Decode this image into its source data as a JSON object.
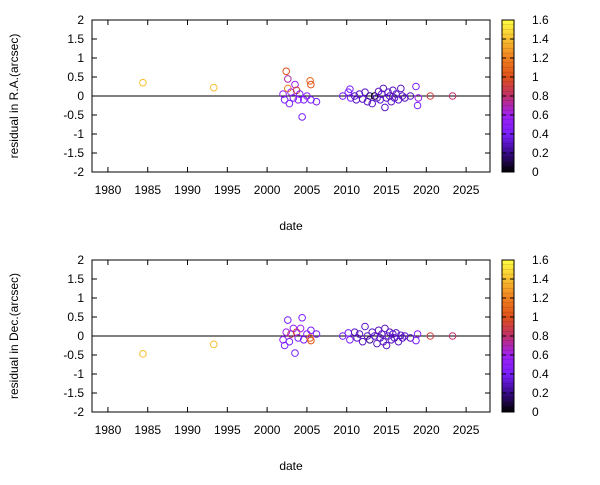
{
  "chart_data": [
    {
      "type": "scatter",
      "xlabel": "date",
      "ylabel": "residual in R.A.(arcsec)",
      "xlim": [
        1978,
        2028
      ],
      "ylim": [
        -2,
        2
      ],
      "xticks": [
        "1980",
        "1985",
        "1990",
        "1995",
        "2000",
        "2005",
        "2010",
        "2015",
        "2020",
        "2025"
      ],
      "yticks": [
        "-2",
        "-1.5",
        "-1",
        "-0.5",
        "0",
        "0.5",
        "1",
        "1.5",
        "2"
      ],
      "colorbar": {
        "range": [
          0,
          1.6
        ],
        "ticks": [
          "0",
          "0.2",
          "0.4",
          "0.6",
          "0.8",
          "1",
          "1.2",
          "1.4",
          "1.6"
        ],
        "stops": [
          "#000000",
          "#3a0a8a",
          "#7b1fff",
          "#a020f0",
          "#c0306a",
          "#e0501a",
          "#f08020",
          "#f8c030",
          "#ffff40"
        ]
      },
      "zero_line": true,
      "points": [
        {
          "x": 1984.4,
          "y": 0.35,
          "c": 1.4
        },
        {
          "x": 1993.3,
          "y": 0.22,
          "c": 1.4
        },
        {
          "x": 2002.0,
          "y": 0.05,
          "c": 0.5
        },
        {
          "x": 2002.2,
          "y": -0.1,
          "c": 0.4
        },
        {
          "x": 2002.4,
          "y": 0.65,
          "c": 1.0
        },
        {
          "x": 2002.6,
          "y": 0.45,
          "c": 0.7
        },
        {
          "x": 2002.6,
          "y": 0.2,
          "c": 1.2
        },
        {
          "x": 2002.8,
          "y": -0.2,
          "c": 0.4
        },
        {
          "x": 2003.0,
          "y": 0.1,
          "c": 0.6
        },
        {
          "x": 2003.3,
          "y": -0.05,
          "c": 0.4
        },
        {
          "x": 2003.5,
          "y": 0.3,
          "c": 0.6
        },
        {
          "x": 2003.7,
          "y": 0.15,
          "c": 0.9
        },
        {
          "x": 2003.9,
          "y": -0.1,
          "c": 0.5
        },
        {
          "x": 2004.1,
          "y": 0.05,
          "c": 0.4
        },
        {
          "x": 2004.4,
          "y": -0.55,
          "c": 0.4
        },
        {
          "x": 2004.6,
          "y": -0.1,
          "c": 0.4
        },
        {
          "x": 2005.0,
          "y": 0.0,
          "c": 0.5
        },
        {
          "x": 2005.4,
          "y": 0.4,
          "c": 1.1
        },
        {
          "x": 2005.5,
          "y": 0.3,
          "c": 1.0
        },
        {
          "x": 2005.5,
          "y": -0.1,
          "c": 0.4
        },
        {
          "x": 2006.2,
          "y": -0.15,
          "c": 0.4
        },
        {
          "x": 2009.5,
          "y": 0.0,
          "c": 0.4
        },
        {
          "x": 2010.2,
          "y": 0.1,
          "c": 0.4
        },
        {
          "x": 2010.4,
          "y": 0.18,
          "c": 0.4
        },
        {
          "x": 2010.5,
          "y": -0.05,
          "c": 0.4
        },
        {
          "x": 2011.0,
          "y": 0.0,
          "c": 0.3
        },
        {
          "x": 2011.2,
          "y": -0.1,
          "c": 0.3
        },
        {
          "x": 2011.6,
          "y": 0.05,
          "c": 0.3
        },
        {
          "x": 2012.0,
          "y": -0.08,
          "c": 0.3
        },
        {
          "x": 2012.3,
          "y": 0.1,
          "c": 0.3
        },
        {
          "x": 2012.6,
          "y": -0.15,
          "c": 0.3
        },
        {
          "x": 2012.9,
          "y": 0.0,
          "c": 0.2
        },
        {
          "x": 2013.2,
          "y": -0.2,
          "c": 0.3
        },
        {
          "x": 2013.5,
          "y": 0.0,
          "c": 0.0
        },
        {
          "x": 2013.8,
          "y": -0.05,
          "c": 0.3
        },
        {
          "x": 2014.0,
          "y": 0.12,
          "c": 0.3
        },
        {
          "x": 2014.2,
          "y": -0.1,
          "c": 0.3
        },
        {
          "x": 2014.4,
          "y": 0.05,
          "c": 0.3
        },
        {
          "x": 2014.6,
          "y": 0.2,
          "c": 0.3
        },
        {
          "x": 2014.8,
          "y": -0.3,
          "c": 0.3
        },
        {
          "x": 2015.0,
          "y": -0.05,
          "c": 0.3
        },
        {
          "x": 2015.2,
          "y": 0.1,
          "c": 0.3
        },
        {
          "x": 2015.4,
          "y": 0.0,
          "c": 0.3
        },
        {
          "x": 2015.6,
          "y": -0.15,
          "c": 0.3
        },
        {
          "x": 2015.8,
          "y": 0.15,
          "c": 0.3
        },
        {
          "x": 2016.0,
          "y": -0.05,
          "c": 0.3
        },
        {
          "x": 2016.2,
          "y": 0.05,
          "c": 0.3
        },
        {
          "x": 2016.5,
          "y": -0.1,
          "c": 0.3
        },
        {
          "x": 2016.8,
          "y": 0.2,
          "c": 0.3
        },
        {
          "x": 2017.0,
          "y": 0.0,
          "c": 0.3
        },
        {
          "x": 2017.3,
          "y": -0.05,
          "c": 0.3
        },
        {
          "x": 2018.0,
          "y": 0.0,
          "c": 0.3
        },
        {
          "x": 2018.7,
          "y": 0.25,
          "c": 0.4
        },
        {
          "x": 2018.9,
          "y": -0.25,
          "c": 0.4
        },
        {
          "x": 2019.0,
          "y": -0.05,
          "c": 0.6
        },
        {
          "x": 2020.5,
          "y": 0.0,
          "c": 0.9
        },
        {
          "x": 2023.3,
          "y": 0.0,
          "c": 0.8
        }
      ]
    },
    {
      "type": "scatter",
      "xlabel": "date",
      "ylabel": "residual in Dec.(arcsec)",
      "xlim": [
        1978,
        2028
      ],
      "ylim": [
        -2,
        2
      ],
      "xticks": [
        "1980",
        "1985",
        "1990",
        "1995",
        "2000",
        "2005",
        "2010",
        "2015",
        "2020",
        "2025"
      ],
      "yticks": [
        "-2",
        "-1.5",
        "-1",
        "-0.5",
        "0",
        "0.5",
        "1",
        "1.5",
        "2"
      ],
      "colorbar": {
        "range": [
          0,
          1.6
        ],
        "ticks": [
          "0",
          "0.2",
          "0.4",
          "0.6",
          "0.8",
          "1",
          "1.2",
          "1.4",
          "1.6"
        ],
        "stops": [
          "#000000",
          "#3a0a8a",
          "#7b1fff",
          "#a020f0",
          "#c0306a",
          "#e0501a",
          "#f08020",
          "#f8c030",
          "#ffff40"
        ]
      },
      "zero_line": true,
      "points": [
        {
          "x": 1984.4,
          "y": -0.47,
          "c": 1.4
        },
        {
          "x": 1993.3,
          "y": -0.22,
          "c": 1.4
        },
        {
          "x": 2002.0,
          "y": -0.1,
          "c": 0.5
        },
        {
          "x": 2002.2,
          "y": -0.25,
          "c": 0.4
        },
        {
          "x": 2002.4,
          "y": 0.1,
          "c": 0.6
        },
        {
          "x": 2002.6,
          "y": 0.42,
          "c": 0.4
        },
        {
          "x": 2002.8,
          "y": -0.15,
          "c": 0.4
        },
        {
          "x": 2003.0,
          "y": 0.05,
          "c": 0.8
        },
        {
          "x": 2003.3,
          "y": 0.2,
          "c": 0.5
        },
        {
          "x": 2003.5,
          "y": -0.45,
          "c": 0.4
        },
        {
          "x": 2003.7,
          "y": 0.1,
          "c": 0.9
        },
        {
          "x": 2003.9,
          "y": -0.05,
          "c": 0.4
        },
        {
          "x": 2004.2,
          "y": 0.2,
          "c": 0.6
        },
        {
          "x": 2004.4,
          "y": 0.48,
          "c": 0.4
        },
        {
          "x": 2004.6,
          "y": -0.1,
          "c": 0.4
        },
        {
          "x": 2005.0,
          "y": 0.05,
          "c": 0.5
        },
        {
          "x": 2005.4,
          "y": -0.05,
          "c": 1.1
        },
        {
          "x": 2005.5,
          "y": -0.12,
          "c": 1.0
        },
        {
          "x": 2005.5,
          "y": 0.15,
          "c": 0.4
        },
        {
          "x": 2006.2,
          "y": 0.05,
          "c": 0.4
        },
        {
          "x": 2009.5,
          "y": 0.0,
          "c": 0.4
        },
        {
          "x": 2010.2,
          "y": 0.08,
          "c": 0.4
        },
        {
          "x": 2010.4,
          "y": -0.1,
          "c": 0.4
        },
        {
          "x": 2011.0,
          "y": 0.1,
          "c": 0.3
        },
        {
          "x": 2011.3,
          "y": -0.05,
          "c": 0.3
        },
        {
          "x": 2011.6,
          "y": 0.05,
          "c": 0.3
        },
        {
          "x": 2012.0,
          "y": -0.15,
          "c": 0.3
        },
        {
          "x": 2012.3,
          "y": 0.25,
          "c": 0.3
        },
        {
          "x": 2012.6,
          "y": 0.0,
          "c": 0.3
        },
        {
          "x": 2012.9,
          "y": -0.1,
          "c": 0.2
        },
        {
          "x": 2013.2,
          "y": 0.1,
          "c": 0.3
        },
        {
          "x": 2013.5,
          "y": 0.0,
          "c": 0.3
        },
        {
          "x": 2013.8,
          "y": -0.2,
          "c": 0.3
        },
        {
          "x": 2014.0,
          "y": 0.15,
          "c": 0.3
        },
        {
          "x": 2014.2,
          "y": -0.05,
          "c": 0.3
        },
        {
          "x": 2014.4,
          "y": 0.05,
          "c": 0.3
        },
        {
          "x": 2014.6,
          "y": -0.15,
          "c": 0.3
        },
        {
          "x": 2014.8,
          "y": 0.2,
          "c": 0.3
        },
        {
          "x": 2015.0,
          "y": -0.25,
          "c": 0.3
        },
        {
          "x": 2015.2,
          "y": 0.0,
          "c": 0.3
        },
        {
          "x": 2015.4,
          "y": 0.1,
          "c": 0.3
        },
        {
          "x": 2015.6,
          "y": -0.1,
          "c": 0.3
        },
        {
          "x": 2015.8,
          "y": 0.05,
          "c": 0.3
        },
        {
          "x": 2016.0,
          "y": -0.05,
          "c": 0.3
        },
        {
          "x": 2016.2,
          "y": 0.08,
          "c": 0.3
        },
        {
          "x": 2016.5,
          "y": -0.15,
          "c": 0.3
        },
        {
          "x": 2016.8,
          "y": 0.02,
          "c": 0.3
        },
        {
          "x": 2017.0,
          "y": -0.05,
          "c": 0.3
        },
        {
          "x": 2017.3,
          "y": 0.0,
          "c": 0.3
        },
        {
          "x": 2018.0,
          "y": -0.05,
          "c": 0.3
        },
        {
          "x": 2018.7,
          "y": -0.12,
          "c": 0.4
        },
        {
          "x": 2018.9,
          "y": 0.05,
          "c": 0.5
        },
        {
          "x": 2020.5,
          "y": 0.0,
          "c": 0.9
        },
        {
          "x": 2023.3,
          "y": 0.0,
          "c": 0.8
        }
      ]
    }
  ]
}
